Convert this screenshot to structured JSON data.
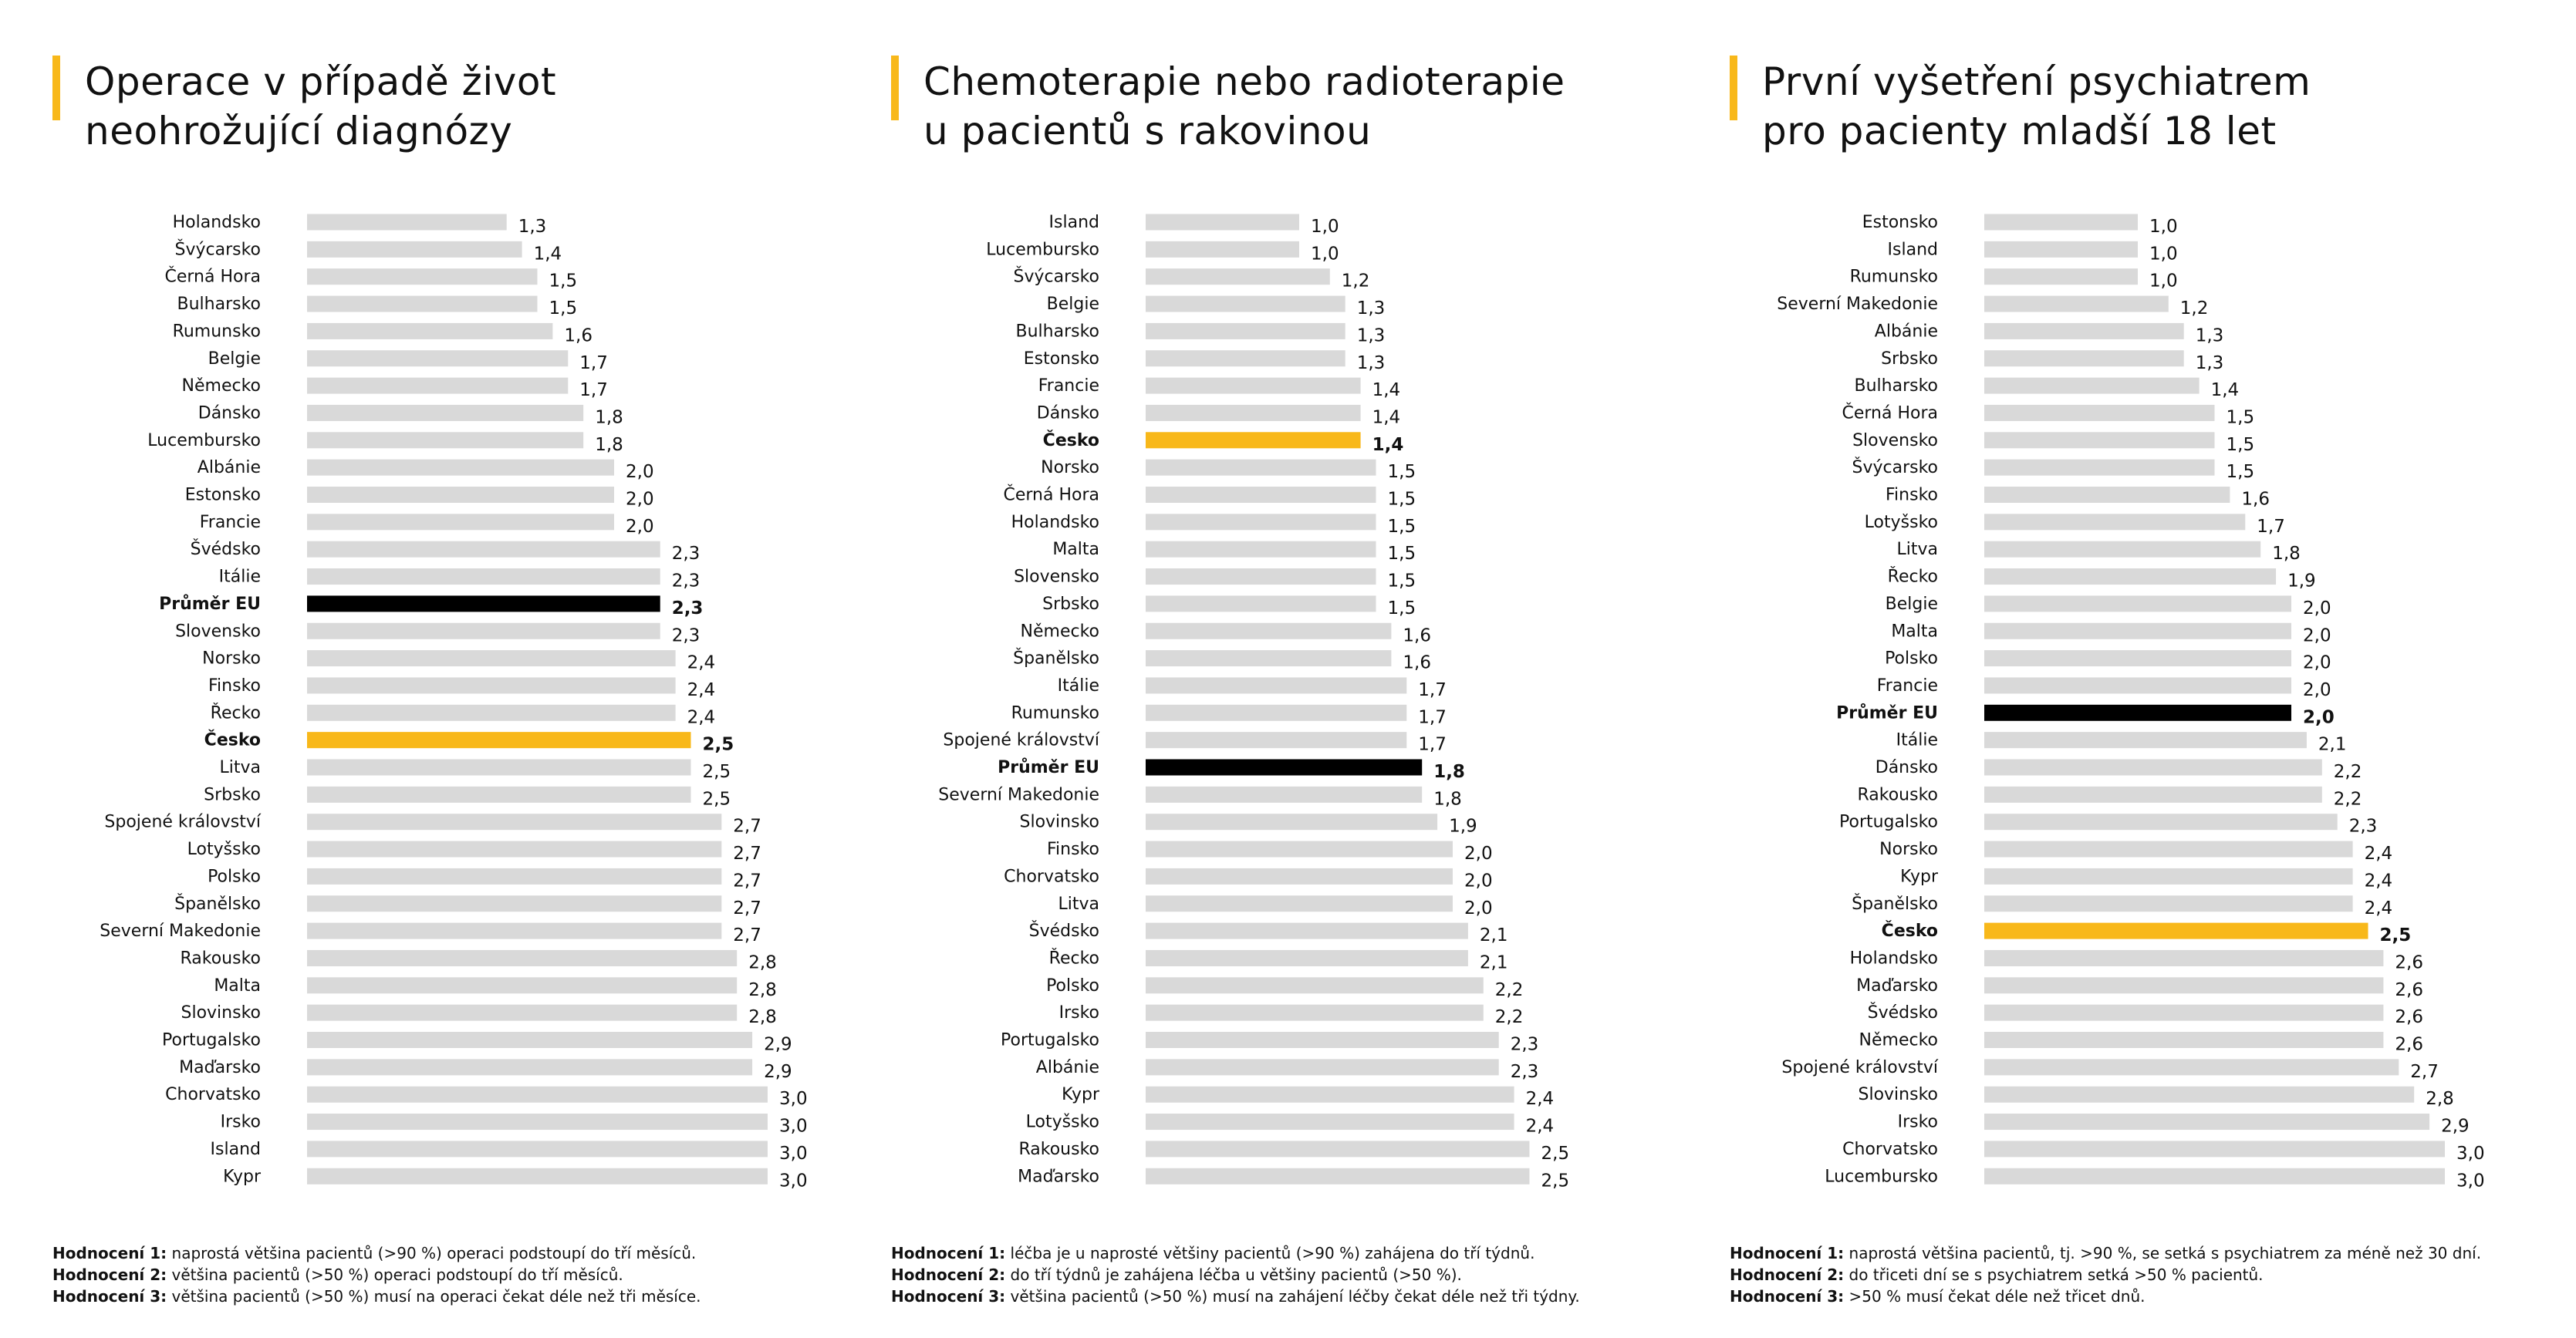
{
  "colors": {
    "bar": "#d9d9d9",
    "highlight": "#f8b81a",
    "average": "#000000",
    "accent": "#f8b81a"
  },
  "rating_labels": [
    "Hodnocení 1:",
    "Hodnocení 2:",
    "Hodnocení 3:"
  ],
  "chart_data": [
    {
      "type": "bar",
      "orientation": "horizontal",
      "title": "Operace v případě život neohrožující diagnózy",
      "title_lines": [
        "Operace v případě život",
        "neohrožující diagnózy"
      ],
      "xlim": [
        0,
        3.0
      ],
      "grid": false,
      "categories": [
        "Holandsko",
        "Švýcarsko",
        "Černá Hora",
        "Bulharsko",
        "Rumunsko",
        "Belgie",
        "Německo",
        "Dánsko",
        "Lucembursko",
        "Albánie",
        "Estonsko",
        "Francie",
        "Švédsko",
        "Itálie",
        "Průměr EU",
        "Slovensko",
        "Norsko",
        "Finsko",
        "Řecko",
        "Česko",
        "Litva",
        "Srbsko",
        "Spojené království",
        "Lotyšsko",
        "Polsko",
        "Španělsko",
        "Severní Makedonie",
        "Rakousko",
        "Malta",
        "Slovinsko",
        "Portugalsko",
        "Maďarsko",
        "Chorvatsko",
        "Irsko",
        "Island",
        "Kypr"
      ],
      "values": [
        1.3,
        1.4,
        1.5,
        1.5,
        1.6,
        1.7,
        1.7,
        1.8,
        1.8,
        2.0,
        2.0,
        2.0,
        2.3,
        2.3,
        2.3,
        2.3,
        2.4,
        2.4,
        2.4,
        2.5,
        2.5,
        2.5,
        2.7,
        2.7,
        2.7,
        2.7,
        2.7,
        2.8,
        2.8,
        2.8,
        2.9,
        2.9,
        3.0,
        3.0,
        3.0,
        3.0
      ],
      "value_labels": [
        "1,3",
        "1,4",
        "1,5",
        "1,5",
        "1,6",
        "1,7",
        "1,7",
        "1,8",
        "1,8",
        "2,0",
        "2,0",
        "2,0",
        "2,3",
        "2,3",
        "2,3",
        "2,3",
        "2,4",
        "2,4",
        "2,4",
        "2,5",
        "2,5",
        "2,5",
        "2,7",
        "2,7",
        "2,7",
        "2,7",
        "2,7",
        "2,8",
        "2,8",
        "2,8",
        "2,9",
        "2,9",
        "3,0",
        "3,0",
        "3,0",
        "3,0"
      ],
      "highlight": "Česko",
      "average": "Průměr EU",
      "notes": [
        "naprostá většina pacientů (>90 %) operaci podstoupí do tří měsíců.",
        "většina pacientů (>50 %) operaci podstoupí do tří měsíců.",
        "většina pacientů (>50 %) musí na operaci čekat déle než tři měsíce."
      ]
    },
    {
      "type": "bar",
      "orientation": "horizontal",
      "title": "Chemoterapie nebo radioterapie u pacientů s rakovinou",
      "title_lines": [
        "Chemoterapie nebo radioterapie",
        "u pacientů s rakovinou"
      ],
      "xlim": [
        0,
        2.5
      ],
      "grid": false,
      "categories": [
        "Island",
        "Lucembursko",
        "Švýcarsko",
        "Belgie",
        "Bulharsko",
        "Estonsko",
        "Francie",
        "Dánsko",
        "Česko",
        "Norsko",
        "Černá Hora",
        "Holandsko",
        "Malta",
        "Slovensko",
        "Srbsko",
        "Německo",
        "Španělsko",
        "Itálie",
        "Rumunsko",
        "Spojené království",
        "Průměr EU",
        "Severní Makedonie",
        "Slovinsko",
        "Finsko",
        "Chorvatsko",
        "Litva",
        "Švédsko",
        "Řecko",
        "Polsko",
        "Irsko",
        "Portugalsko",
        "Albánie",
        "Kypr",
        "Lotyšsko",
        "Rakousko",
        "Maďarsko"
      ],
      "values": [
        1.0,
        1.0,
        1.2,
        1.3,
        1.3,
        1.3,
        1.4,
        1.4,
        1.4,
        1.5,
        1.5,
        1.5,
        1.5,
        1.5,
        1.5,
        1.6,
        1.6,
        1.7,
        1.7,
        1.7,
        1.8,
        1.8,
        1.9,
        2.0,
        2.0,
        2.0,
        2.1,
        2.1,
        2.2,
        2.2,
        2.3,
        2.3,
        2.4,
        2.4,
        2.5,
        2.5
      ],
      "value_labels": [
        "1,0",
        "1,0",
        "1,2",
        "1,3",
        "1,3",
        "1,3",
        "1,4",
        "1,4",
        "1,4",
        "1,5",
        "1,5",
        "1,5",
        "1,5",
        "1,5",
        "1,5",
        "1,6",
        "1,6",
        "1,7",
        "1,7",
        "1,7",
        "1,8",
        "1,8",
        "1,9",
        "2,0",
        "2,0",
        "2,0",
        "2,1",
        "2,1",
        "2,2",
        "2,2",
        "2,3",
        "2,3",
        "2,4",
        "2,4",
        "2,5",
        "2,5"
      ],
      "highlight": "Česko",
      "average": "Průměr EU",
      "notes": [
        "léčba je u naprosté většiny pacientů (>90 %) zahájena do tří týdnů.",
        "do tří týdnů je zahájena léčba u většiny pacientů (>50 %).",
        "většina pacientů (>50 %) musí na zahájení léčby čekat déle než tři týdny."
      ]
    },
    {
      "type": "bar",
      "orientation": "horizontal",
      "title": "První vyšetření psychiatrem pro pacienty mladší 18 let",
      "title_lines": [
        "První vyšetření psychiatrem",
        "pro pacienty mladší 18 let"
      ],
      "xlim": [
        0,
        3.0
      ],
      "grid": false,
      "categories": [
        "Estonsko",
        "Island",
        "Rumunsko",
        "Severní Makedonie",
        "Albánie",
        "Srbsko",
        "Bulharsko",
        "Černá Hora",
        "Slovensko",
        "Švýcarsko",
        "Finsko",
        "Lotyšsko",
        "Litva",
        "Řecko",
        "Belgie",
        "Malta",
        "Polsko",
        "Francie",
        "Průměr EU",
        "Itálie",
        "Dánsko",
        "Rakousko",
        "Portugalsko",
        "Norsko",
        "Kypr",
        "Španělsko",
        "Česko",
        "Holandsko",
        "Maďarsko",
        "Švédsko",
        "Německo",
        "Spojené království",
        "Slovinsko",
        "Irsko",
        "Chorvatsko",
        "Lucembursko"
      ],
      "values": [
        1.0,
        1.0,
        1.0,
        1.2,
        1.3,
        1.3,
        1.4,
        1.5,
        1.5,
        1.5,
        1.6,
        1.7,
        1.8,
        1.9,
        2.0,
        2.0,
        2.0,
        2.0,
        2.0,
        2.1,
        2.2,
        2.2,
        2.3,
        2.4,
        2.4,
        2.4,
        2.5,
        2.6,
        2.6,
        2.6,
        2.6,
        2.7,
        2.8,
        2.9,
        3.0,
        3.0
      ],
      "value_labels": [
        "1,0",
        "1,0",
        "1,0",
        "1,2",
        "1,3",
        "1,3",
        "1,4",
        "1,5",
        "1,5",
        "1,5",
        "1,6",
        "1,7",
        "1,8",
        "1,9",
        "2,0",
        "2,0",
        "2,0",
        "2,0",
        "2,0",
        "2,1",
        "2,2",
        "2,2",
        "2,3",
        "2,4",
        "2,4",
        "2,4",
        "2,5",
        "2,6",
        "2,6",
        "2,6",
        "2,6",
        "2,7",
        "2,8",
        "2,9",
        "3,0",
        "3,0"
      ],
      "highlight": "Česko",
      "average": "Průměr EU",
      "notes": [
        "naprostá většina pacientů, tj. >90 %, se setká s psychiatrem za méně než 30 dní.",
        "do třiceti dní se s psychiatrem setká >50 % pacientů.",
        "&gt;50 % musí čekat déle než třicet dnů."
      ]
    }
  ]
}
